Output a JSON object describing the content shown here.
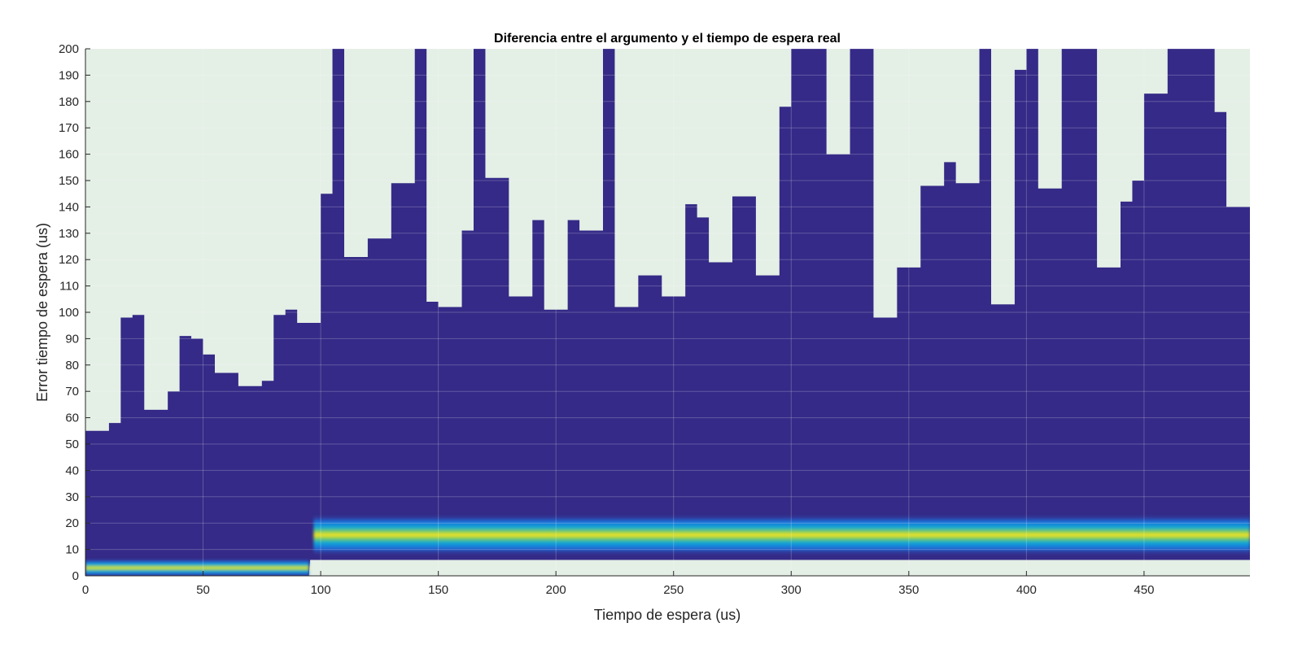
{
  "chart_data": {
    "type": "heatmap",
    "title": "Diferencia entre el argumento y el tiempo de espera real",
    "xlabel": "Tiempo de espera (us)",
    "ylabel": "Error tiempo de espera (us)",
    "xlim": [
      0,
      495
    ],
    "ylim": [
      0,
      200
    ],
    "x_ticks": [
      0,
      50,
      100,
      150,
      200,
      250,
      300,
      350,
      400,
      450
    ],
    "y_ticks": [
      0,
      10,
      20,
      30,
      40,
      50,
      60,
      70,
      80,
      90,
      100,
      110,
      120,
      130,
      140,
      150,
      160,
      170,
      180,
      190,
      200
    ],
    "grid": true,
    "colors": {
      "background": "#e4efe6",
      "low_density": "#352a87",
      "mid_density": "#0f9fdb",
      "high_density": "#f9e41a",
      "grid": "#ffffff"
    },
    "upper_envelope": {
      "description_units": "x in us, y in us",
      "points": [
        [
          0,
          55
        ],
        [
          10,
          58
        ],
        [
          15,
          98
        ],
        [
          20,
          99
        ],
        [
          25,
          63
        ],
        [
          35,
          70
        ],
        [
          40,
          91
        ],
        [
          45,
          90
        ],
        [
          50,
          84
        ],
        [
          55,
          77
        ],
        [
          65,
          72
        ],
        [
          75,
          74
        ],
        [
          80,
          99
        ],
        [
          85,
          101
        ],
        [
          90,
          96
        ],
        [
          100,
          145
        ],
        [
          105,
          200
        ],
        [
          110,
          121
        ],
        [
          120,
          128
        ],
        [
          130,
          149
        ],
        [
          140,
          200
        ],
        [
          145,
          104
        ],
        [
          150,
          102
        ],
        [
          160,
          131
        ],
        [
          165,
          200
        ],
        [
          170,
          151
        ],
        [
          180,
          106
        ],
        [
          190,
          135
        ],
        [
          195,
          101
        ],
        [
          205,
          135
        ],
        [
          210,
          131
        ],
        [
          220,
          200
        ],
        [
          225,
          102
        ],
        [
          235,
          114
        ],
        [
          245,
          106
        ],
        [
          255,
          141
        ],
        [
          260,
          136
        ],
        [
          265,
          119
        ],
        [
          275,
          144
        ],
        [
          285,
          114
        ],
        [
          295,
          178
        ],
        [
          300,
          200
        ],
        [
          315,
          160
        ],
        [
          325,
          200
        ],
        [
          335,
          98
        ],
        [
          345,
          117
        ],
        [
          355,
          148
        ],
        [
          365,
          157
        ],
        [
          370,
          149
        ],
        [
          380,
          200
        ],
        [
          385,
          103
        ],
        [
          395,
          192
        ],
        [
          400,
          200
        ],
        [
          405,
          147
        ],
        [
          415,
          200
        ],
        [
          430,
          117
        ],
        [
          440,
          142
        ],
        [
          445,
          150
        ],
        [
          450,
          183
        ],
        [
          460,
          200
        ],
        [
          480,
          176
        ],
        [
          485,
          140
        ]
      ]
    },
    "lower_envelope": {
      "points": [
        [
          0,
          0
        ],
        [
          95,
          0
        ],
        [
          95.5,
          6
        ],
        [
          495,
          6
        ]
      ]
    },
    "density_bands": [
      {
        "x_range": [
          0,
          95
        ],
        "center_y": 3,
        "half_width": 3.5
      },
      {
        "x_range": [
          97,
          495
        ],
        "center_y": 15.5,
        "half_width": 8
      }
    ]
  }
}
